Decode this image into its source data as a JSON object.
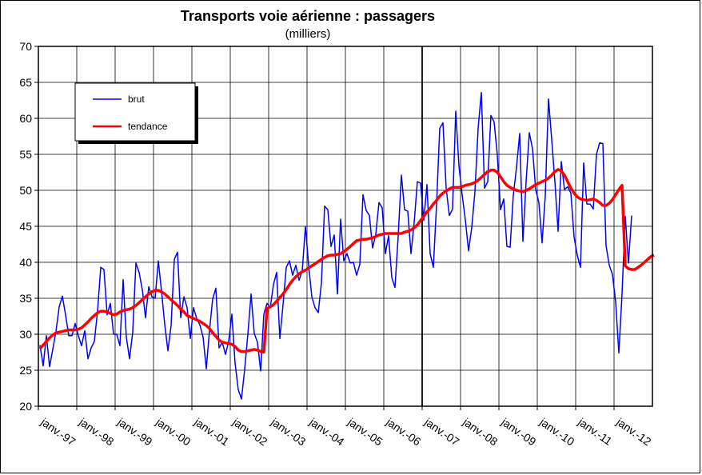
{
  "chart_data": {
    "type": "line",
    "title": "Transports voie aérienne : passagers",
    "subtitle": "(milliers)",
    "ylim": [
      20,
      70
    ],
    "yticks": [
      20,
      25,
      30,
      35,
      40,
      45,
      50,
      55,
      60,
      65,
      70
    ],
    "xticks": [
      "janv.-97",
      "janv.-98",
      "janv.-99",
      "janv.-00",
      "janv.-01",
      "janv.-02",
      "janv.-03",
      "janv.-04",
      "janv.-05",
      "janv.-06",
      "janv.-07",
      "janv.-08",
      "janv.-09",
      "janv.-10",
      "janv.-11",
      "janv.-12"
    ],
    "grid": true,
    "legend_position": "top-left",
    "series": [
      {
        "name": "brut",
        "color": "#0000FF",
        "values": [
          28.5,
          25.6,
          29.8,
          25.5,
          27.9,
          30.4,
          33.8,
          35.3,
          32.7,
          29.8,
          29.8,
          31.5,
          29.8,
          28.4,
          30.5,
          26.6,
          28.1,
          29.0,
          33.2,
          39.3,
          39.0,
          32.7,
          34.3,
          30.0,
          30.0,
          28.4,
          37.6,
          29.6,
          26.6,
          30.3,
          39.9,
          38.6,
          36.2,
          32.3,
          36.6,
          35.2,
          35.0,
          40.2,
          36.0,
          31.4,
          27.7,
          31.2,
          40.4,
          41.4,
          32.3,
          35.2,
          33.7,
          29.4,
          33.7,
          32.2,
          31.3,
          29.6,
          25.2,
          30.5,
          34.9,
          36.4,
          28.1,
          28.9,
          27.2,
          29.0,
          32.8,
          26.0,
          22.3,
          21.0,
          25.1,
          30.0,
          35.6,
          30.1,
          28.9,
          24.9,
          32.8,
          34.3,
          33.7,
          36.9,
          38.6,
          29.4,
          34.1,
          39.3,
          40.2,
          38.2,
          39.6,
          37.5,
          38.8,
          45.0,
          39.6,
          35.2,
          33.7,
          33.0,
          37.1,
          47.8,
          47.3,
          42.2,
          43.8,
          35.6,
          46.0,
          40.2,
          41.2,
          39.9,
          40.0,
          38.2,
          39.7,
          49.4,
          47.2,
          46.5,
          42.0,
          43.9,
          48.3,
          47.6,
          41.2,
          43.7,
          37.9,
          36.5,
          43.6,
          52.1,
          47.3,
          47.1,
          41.2,
          45.5,
          51.2,
          51.0,
          45.8,
          50.8,
          41.2,
          39.3,
          48.0,
          58.6,
          59.4,
          50.3,
          46.5,
          47.4,
          61.0,
          53.4,
          49.4,
          45.9,
          41.6,
          44.8,
          49.8,
          58.6,
          63.6,
          50.3,
          51.2,
          60.4,
          59.5,
          54.9,
          47.3,
          48.8,
          42.2,
          42.1,
          49.3,
          53.2,
          57.9,
          42.9,
          51.2,
          58.0,
          55.8,
          50.1,
          48.3,
          42.7,
          49.3,
          62.7,
          57.1,
          51.2,
          44.3,
          54.0,
          50.1,
          50.5,
          49.6,
          43.5,
          41.0,
          39.3,
          53.8,
          48.1,
          48.1,
          47.4,
          55.0,
          56.6,
          56.5,
          42.3,
          39.6,
          38.3,
          34.5,
          27.4,
          35.6,
          46.4,
          39.9,
          46.5
        ]
      },
      {
        "name": "tendance",
        "color": "#FF0000",
        "values": [
          28.0,
          28.5,
          29.0,
          29.5,
          29.9,
          30.2,
          30.3,
          30.4,
          30.5,
          30.6,
          30.6,
          30.6,
          30.7,
          30.9,
          31.3,
          31.7,
          32.2,
          32.6,
          33.0,
          33.2,
          33.2,
          33.1,
          32.9,
          32.7,
          32.8,
          33.1,
          33.3,
          33.4,
          33.5,
          33.7,
          34.0,
          34.4,
          34.8,
          35.2,
          35.6,
          35.9,
          36.1,
          36.1,
          35.9,
          35.6,
          35.2,
          34.8,
          34.4,
          34.0,
          33.5,
          33.1,
          32.6,
          32.4,
          32.2,
          32.0,
          31.8,
          31.5,
          31.2,
          30.8,
          30.2,
          29.7,
          29.2,
          28.9,
          28.8,
          28.7,
          28.6,
          28.3,
          27.8,
          27.6,
          27.6,
          27.7,
          27.8,
          27.9,
          27.8,
          27.6,
          27.5,
          33.6,
          33.8,
          34.1,
          34.6,
          35.1,
          35.6,
          36.2,
          36.9,
          37.5,
          38.0,
          38.4,
          38.7,
          38.9,
          39.2,
          39.5,
          39.8,
          40.1,
          40.4,
          40.7,
          40.9,
          41.0,
          41.0,
          41.1,
          41.2,
          41.5,
          41.8,
          42.2,
          42.6,
          43.0,
          43.1,
          43.2,
          43.2,
          43.3,
          43.4,
          43.6,
          43.8,
          43.9,
          44.0,
          44.0,
          44.0,
          44.0,
          44.0,
          44.0,
          44.2,
          44.3,
          44.5,
          44.8,
          45.2,
          45.8,
          46.4,
          47.0,
          47.5,
          48.1,
          48.6,
          49.2,
          49.6,
          49.9,
          50.2,
          50.4,
          50.4,
          50.4,
          50.5,
          50.7,
          50.8,
          50.9,
          51.1,
          51.4,
          51.8,
          52.2,
          52.6,
          52.8,
          52.8,
          52.5,
          51.9,
          51.2,
          50.7,
          50.4,
          50.2,
          50.0,
          49.9,
          49.8,
          50.0,
          50.2,
          50.5,
          50.8,
          51.0,
          51.2,
          51.4,
          51.7,
          52.1,
          52.6,
          52.9,
          52.7,
          52.1,
          51.2,
          50.3,
          49.6,
          49.1,
          48.8,
          48.7,
          48.6,
          48.7,
          48.8,
          48.6,
          48.3,
          47.9,
          47.9,
          48.2,
          48.7,
          49.4,
          50.1,
          50.7,
          39.5,
          39.1,
          39.0,
          39.0,
          39.3,
          39.6,
          40.0,
          40.4,
          40.8,
          41.0
        ]
      }
    ]
  },
  "colors": {
    "grid": "#000000",
    "background": "#FFFFFF"
  }
}
